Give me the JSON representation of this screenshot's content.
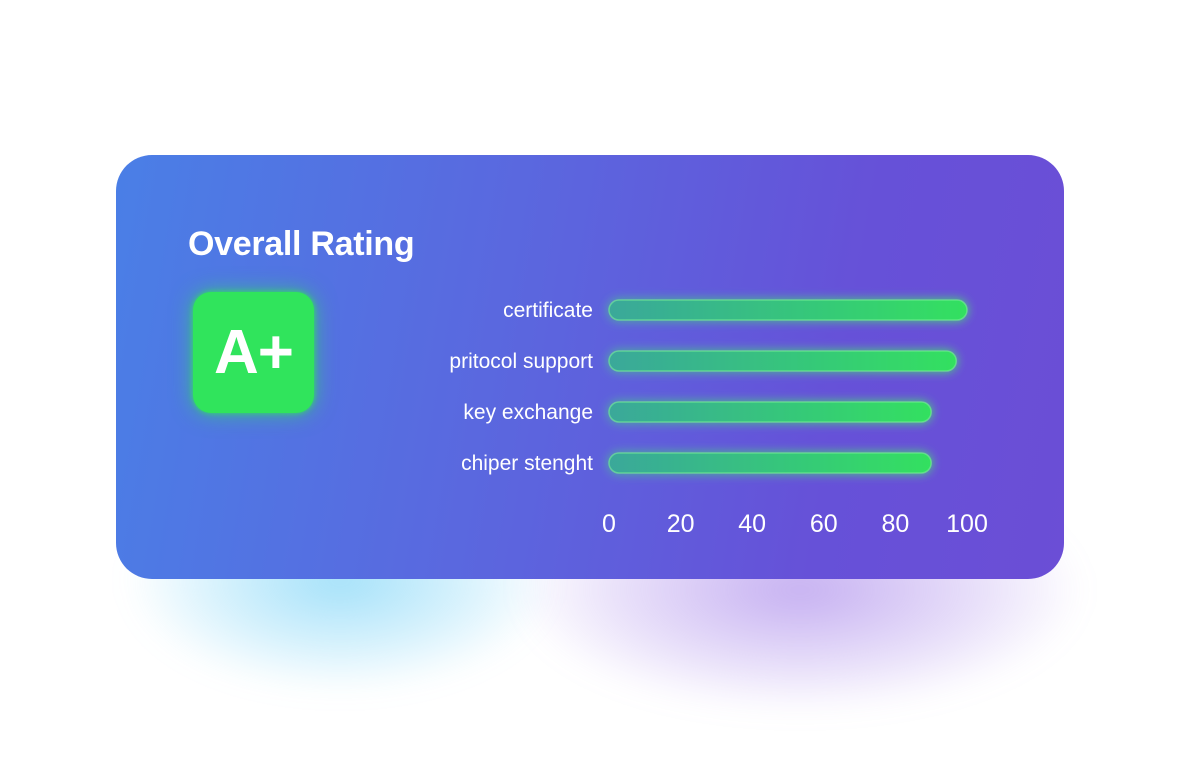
{
  "card": {
    "title": "Overall Rating",
    "grade": "A+"
  },
  "colors": {
    "card_start": "#4a7fe6",
    "card_end": "#6b4ed6",
    "bar_start": "#3aa89a",
    "bar_end": "#33e060",
    "badge": "#30e45c"
  },
  "chart_data": {
    "type": "bar",
    "orientation": "horizontal",
    "categories": [
      "certificate",
      "pritocol support",
      "key exchange",
      "chiper stenght"
    ],
    "values": [
      100,
      97,
      90,
      90
    ],
    "xlim": [
      0,
      100
    ],
    "ticks": [
      0,
      20,
      40,
      60,
      80,
      100
    ],
    "grid": false,
    "legend": "none"
  }
}
